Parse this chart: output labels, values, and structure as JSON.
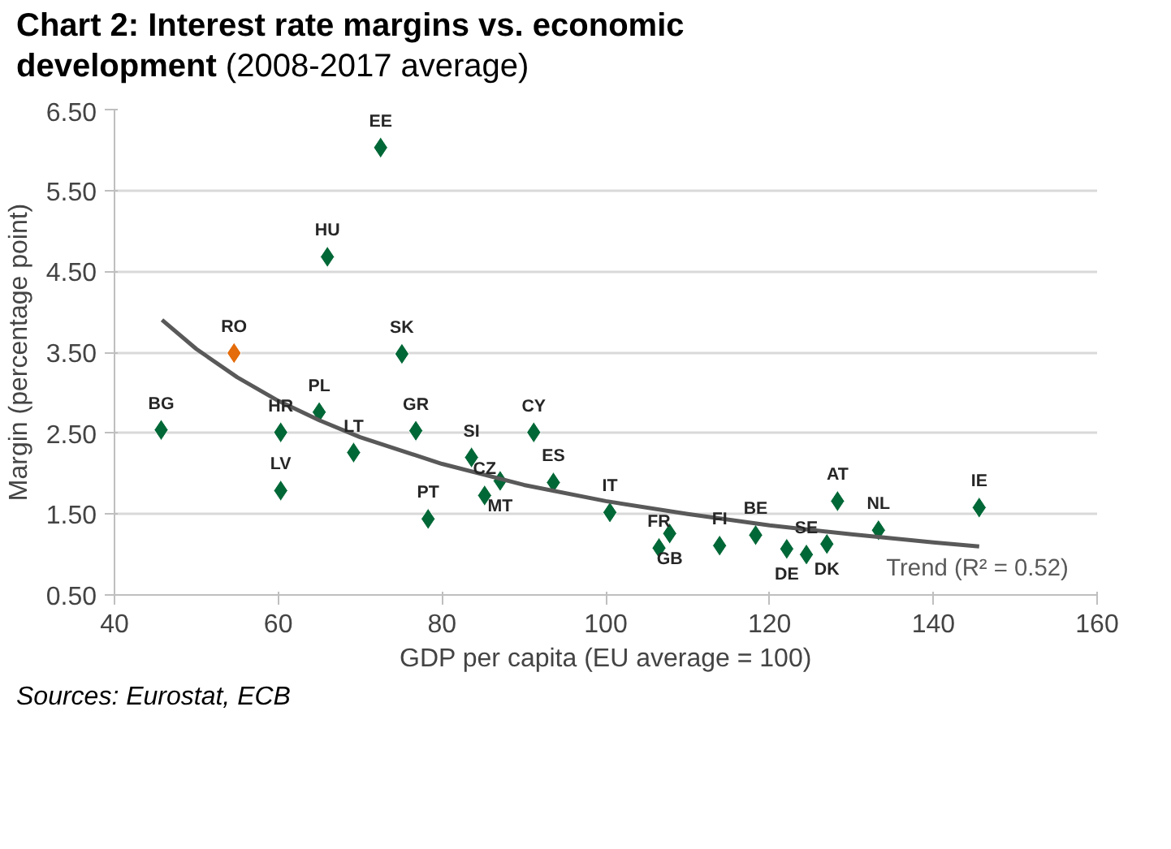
{
  "chart_data": {
    "type": "scatter",
    "title": "Chart 2: Interest rate margins vs. economic development",
    "subtitle": "(2008-2017 average)",
    "xlabel": "GDP per capita (EU average = 100)",
    "ylabel": "Margin (percentage point)",
    "xlim": [
      40,
      160
    ],
    "xticks": [
      40,
      60,
      80,
      100,
      120,
      140,
      160
    ],
    "ylim": [
      0.5,
      6.5
    ],
    "yticks": [
      {
        "value": 0.5,
        "label": "0.50"
      },
      {
        "value": 1.5,
        "label": "1.50"
      },
      {
        "value": 2.5,
        "label": "2.50"
      },
      {
        "value": 3.5,
        "label": "3.50"
      },
      {
        "value": 4.5,
        "label": "4.50"
      },
      {
        "value": 5.5,
        "label": "5.50"
      },
      {
        "value": 6.5,
        "label": "6.50"
      }
    ],
    "grid": "y",
    "marker": "diamond",
    "series": [
      {
        "x": [
          45.7,
          54.6,
          72.5,
          66.0,
          75.1,
          60.3,
          65.0,
          60.3,
          69.2,
          76.8,
          78.3,
          83.6,
          85.2,
          87.1,
          91.2,
          93.6,
          100.5,
          106.5,
          107.8,
          113.9,
          118.3,
          122.1,
          124.5,
          127.0,
          128.3,
          133.3,
          145.6
        ],
        "values": [
          2.54,
          3.49,
          6.03,
          4.68,
          3.48,
          2.51,
          2.76,
          1.79,
          2.26,
          2.53,
          1.44,
          2.2,
          1.73,
          1.91,
          2.51,
          1.89,
          1.52,
          1.08,
          1.26,
          1.11,
          1.24,
          1.07,
          1.0,
          1.13,
          1.66,
          1.3,
          1.58
        ],
        "colors": [
          "#006837",
          "#e46c0a",
          "#006837",
          "#006837",
          "#006837",
          "#006837",
          "#006837",
          "#006837",
          "#006837",
          "#006837",
          "#006837",
          "#006837",
          "#006837",
          "#006837",
          "#006837",
          "#006837",
          "#006837",
          "#006837",
          "#006837",
          "#006837",
          "#006837",
          "#006837",
          "#006837",
          "#006837",
          "#006837",
          "#006837",
          "#006837"
        ]
      },
      {
        "type": "line",
        "marker": "none",
        "name": "Trend (R² = 0.52)",
        "color": "#595959",
        "x": [
          45.8,
          50,
          55,
          60,
          65,
          70,
          80,
          90,
          100,
          110,
          120,
          130,
          140,
          145.6
        ],
        "values": [
          3.9,
          3.54,
          3.19,
          2.9,
          2.66,
          2.45,
          2.12,
          1.86,
          1.66,
          1.5,
          1.36,
          1.25,
          1.15,
          1.1
        ]
      }
    ],
    "annotations": [
      {
        "text": "BG",
        "x": 45.7,
        "y": 2.54
      },
      {
        "text": "RO",
        "x": 54.6,
        "y": 3.49
      },
      {
        "text": "EE",
        "x": 72.5,
        "y": 6.03
      },
      {
        "text": "HU",
        "x": 66.0,
        "y": 4.68
      },
      {
        "text": "SK",
        "x": 75.1,
        "y": 3.48
      },
      {
        "text": "HR",
        "x": 60.3,
        "y": 2.51
      },
      {
        "text": "PL",
        "x": 65.0,
        "y": 2.76
      },
      {
        "text": "LV",
        "x": 60.3,
        "y": 1.79
      },
      {
        "text": "LT",
        "x": 69.2,
        "y": 2.26
      },
      {
        "text": "GR",
        "x": 76.8,
        "y": 2.53
      },
      {
        "text": "PT",
        "x": 78.3,
        "y": 1.44
      },
      {
        "text": "SI",
        "x": 83.6,
        "y": 2.2
      },
      {
        "text": "CZ",
        "x": 85.2,
        "y": 1.73
      },
      {
        "text": "MT",
        "x": 87.1,
        "y": 1.91
      },
      {
        "text": "CY",
        "x": 91.2,
        "y": 2.51
      },
      {
        "text": "ES",
        "x": 93.6,
        "y": 1.89
      },
      {
        "text": "IT",
        "x": 100.5,
        "y": 1.52
      },
      {
        "text": "FR",
        "x": 106.5,
        "y": 1.08
      },
      {
        "text": "GB",
        "x": 107.8,
        "y": 1.26
      },
      {
        "text": "FI",
        "x": 113.9,
        "y": 1.11
      },
      {
        "text": "BE",
        "x": 118.3,
        "y": 1.24
      },
      {
        "text": "DE",
        "x": 122.1,
        "y": 1.07
      },
      {
        "text": "SE",
        "x": 124.5,
        "y": 1.0
      },
      {
        "text": "DK",
        "x": 127.0,
        "y": 1.13
      },
      {
        "text": "AT",
        "x": 128.3,
        "y": 1.66
      },
      {
        "text": "NL",
        "x": 133.3,
        "y": 1.3
      },
      {
        "text": "IE",
        "x": 145.6,
        "y": 1.58
      },
      "Sources: Eurostat, ECB"
    ]
  }
}
